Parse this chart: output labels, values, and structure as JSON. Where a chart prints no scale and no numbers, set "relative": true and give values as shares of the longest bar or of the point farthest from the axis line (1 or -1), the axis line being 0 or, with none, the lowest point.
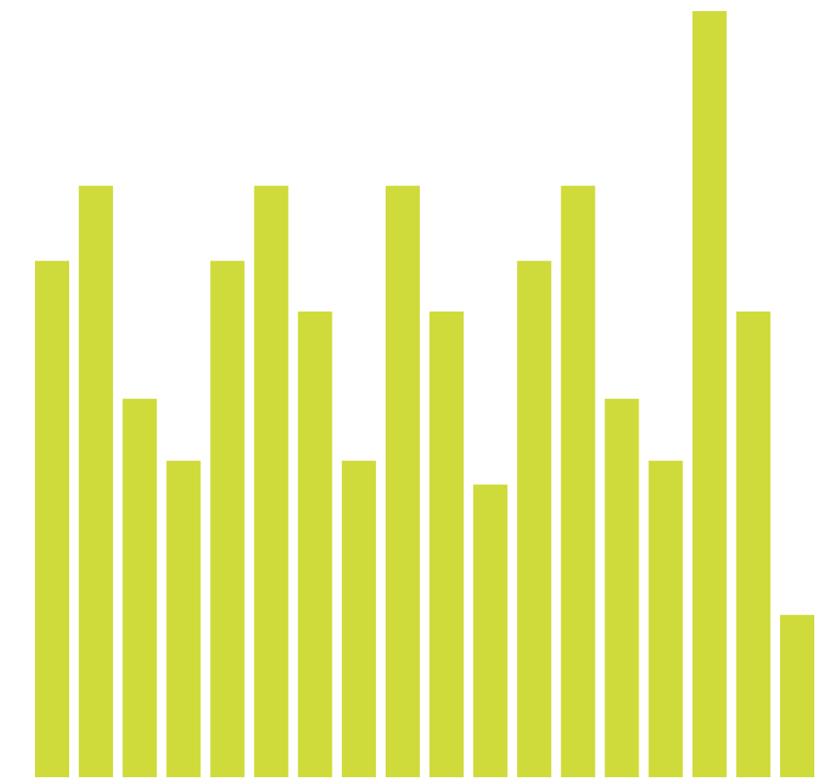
{
  "chart_data": {
    "type": "bar",
    "relative": true,
    "categories": [
      null,
      null,
      null,
      null,
      null,
      null,
      null,
      null,
      null,
      null,
      null,
      null,
      null,
      null,
      null,
      null,
      null,
      null
    ],
    "values": [
      0.674,
      0.772,
      0.494,
      0.413,
      0.674,
      0.772,
      0.608,
      0.413,
      0.772,
      0.608,
      0.382,
      0.674,
      0.772,
      0.494,
      0.413,
      1,
      0.608,
      0.212
    ],
    "color": "#cfdb3a"
  }
}
